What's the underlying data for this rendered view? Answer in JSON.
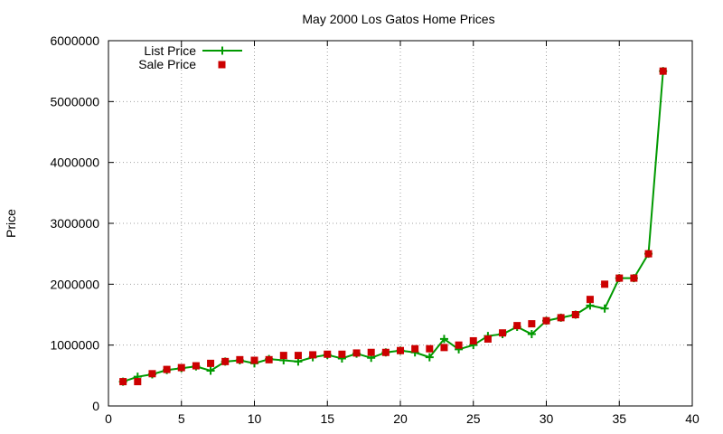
{
  "chart_data": {
    "type": "line",
    "title": "May 2000 Los Gatos Home Prices",
    "xlabel": "",
    "ylabel": "Price",
    "xlim": [
      0,
      40
    ],
    "ylim": [
      0,
      6000000
    ],
    "xticks": [
      "0",
      "5",
      "10",
      "15",
      "20",
      "25",
      "30",
      "35",
      "40"
    ],
    "yticks": [
      "0",
      "1000000",
      "2000000",
      "3000000",
      "4000000",
      "5000000",
      "6000000"
    ],
    "grid": true,
    "legend_position": "top-left",
    "x": [
      1,
      2,
      3,
      4,
      5,
      6,
      7,
      8,
      9,
      10,
      11,
      12,
      13,
      14,
      15,
      16,
      17,
      18,
      19,
      20,
      21,
      22,
      23,
      24,
      25,
      26,
      27,
      28,
      29,
      30,
      31,
      32,
      33,
      34,
      35,
      36,
      37,
      38
    ],
    "series": [
      {
        "name": "List Price",
        "style": "line+cross",
        "color": "#009900",
        "values": [
          400000,
          480000,
          520000,
          590000,
          620000,
          650000,
          580000,
          730000,
          750000,
          700000,
          770000,
          750000,
          730000,
          800000,
          840000,
          780000,
          860000,
          790000,
          880000,
          910000,
          880000,
          800000,
          1100000,
          930000,
          1000000,
          1150000,
          1180000,
          1300000,
          1180000,
          1400000,
          1450000,
          1500000,
          1650000,
          1600000,
          2100000,
          2100000,
          2500000,
          5500000
        ]
      },
      {
        "name": "Sale Price",
        "style": "square",
        "color": "#cc0000",
        "values": [
          400000,
          400000,
          530000,
          600000,
          630000,
          660000,
          700000,
          730000,
          760000,
          750000,
          760000,
          830000,
          830000,
          840000,
          850000,
          850000,
          870000,
          880000,
          880000,
          910000,
          940000,
          940000,
          960000,
          1000000,
          1070000,
          1100000,
          1200000,
          1320000,
          1350000,
          1400000,
          1450000,
          1500000,
          1750000,
          2000000,
          2100000,
          2100000,
          2500000,
          5500000
        ]
      }
    ]
  }
}
